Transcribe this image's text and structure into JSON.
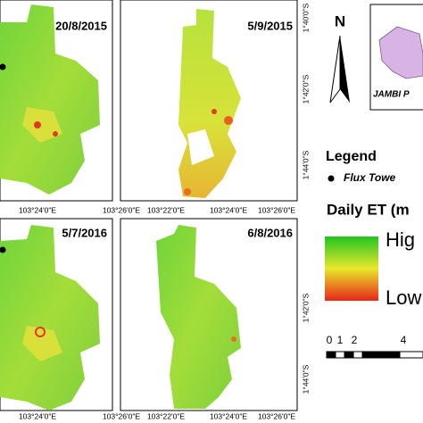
{
  "panels": [
    {
      "date": "20/8/2015"
    },
    {
      "date": "5/9/2015"
    },
    {
      "date": "5/7/2016"
    },
    {
      "date": "6/8/2016"
    }
  ],
  "lon_labels": {
    "middle": [
      "103°24'0\"E",
      "103°26'0\"E",
      "103°22'0\"E",
      "103°24'0\"E",
      "103°26'0\"E"
    ],
    "bottom": [
      "103°24'0\"E",
      "103°26'0\"E",
      "103°22'0\"E",
      "103°24'0\"E",
      "103°26'0\"E"
    ]
  },
  "lat_labels": {
    "top": [
      "1°40'0\"S",
      "1°42'0\"S",
      "1°44'0\"S"
    ],
    "bottom": [
      "1°42'0\"S",
      "1°44'0\"S"
    ]
  },
  "north": "N",
  "inset_label": "JAMBI P",
  "legend": {
    "title": "Legend",
    "flux_tower": "Flux Towe"
  },
  "et": {
    "title": "Daily ET (m",
    "high": "Hig",
    "low": "Low"
  },
  "scale": [
    0,
    1,
    2,
    4
  ]
}
